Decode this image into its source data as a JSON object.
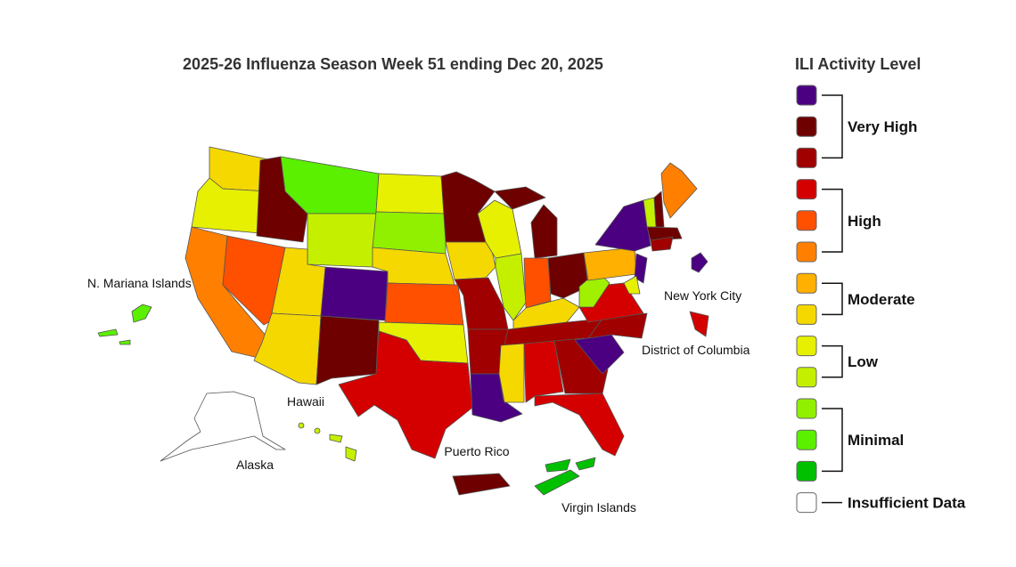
{
  "title": "2025-26 Influenza Season Week 51 ending Dec 20, 2025",
  "places": [
    "N. Mariana Islands",
    "New York City",
    "District of Columbia",
    "Hawaii",
    "Alaska",
    "Puerto Rico",
    "Virgin Islands"
  ],
  "legend": {
    "title": "ILI Activity Level",
    "swatches": [
      "#4b0082",
      "#6e0000",
      "#a00000",
      "#d40000",
      "#ff5000",
      "#ff8000",
      "#ffb000",
      "#f5d800",
      "#e6f000",
      "#c4f000",
      "#90f000",
      "#5af000",
      "#00c000",
      "#ffffff"
    ],
    "groups": [
      "Very High",
      "High",
      "Moderate",
      "Low",
      "Minimal",
      "Insufficient Data"
    ]
  }
}
